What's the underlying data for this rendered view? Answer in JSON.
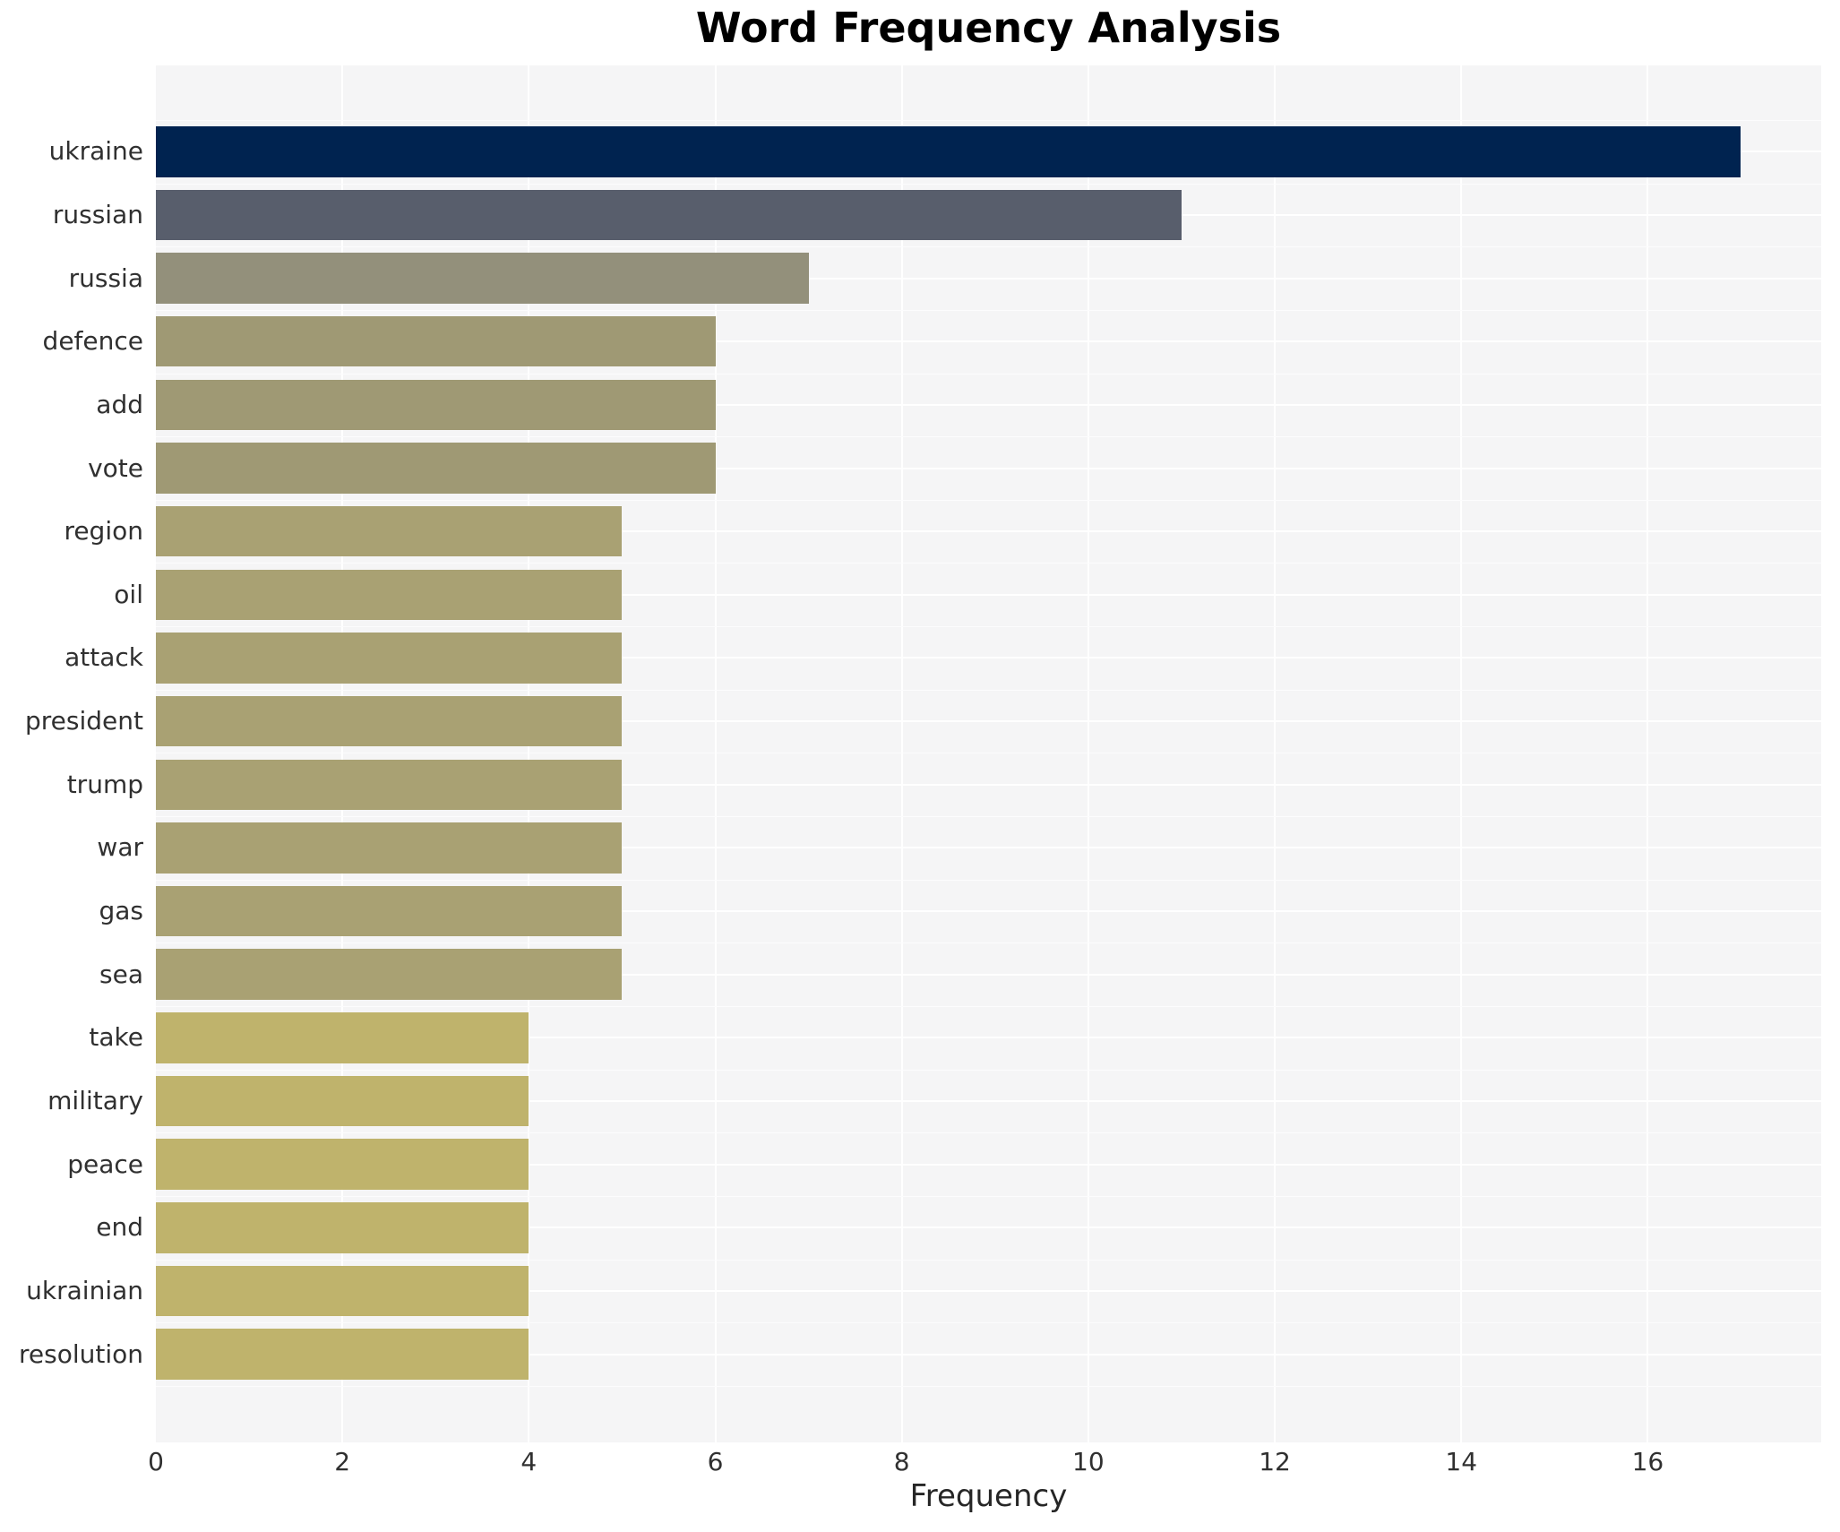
{
  "title": "Word Frequency Analysis",
  "chart_data": {
    "type": "bar",
    "orientation": "horizontal",
    "title": "Word Frequency Analysis",
    "xlabel": "Frequency",
    "ylabel": "",
    "categories": [
      "ukraine",
      "russian",
      "russia",
      "defence",
      "add",
      "vote",
      "region",
      "oil",
      "attack",
      "president",
      "trump",
      "war",
      "gas",
      "sea",
      "take",
      "military",
      "peace",
      "end",
      "ukrainian",
      "resolution"
    ],
    "values": [
      17,
      11,
      7,
      6,
      6,
      6,
      5,
      5,
      5,
      5,
      5,
      5,
      5,
      5,
      4,
      4,
      4,
      4,
      4,
      4
    ],
    "bar_colors": [
      "#002350",
      "#585e6c",
      "#93907b",
      "#9f9974",
      "#9f9974",
      "#9f9974",
      "#a9a173",
      "#a9a173",
      "#a9a173",
      "#a9a173",
      "#a9a173",
      "#a9a173",
      "#a9a173",
      "#a9a173",
      "#bfb36c",
      "#bfb36c",
      "#bfb36c",
      "#bfb36c",
      "#bfb36c",
      "#bfb36c"
    ],
    "x_ticks": [
      0,
      2,
      4,
      6,
      8,
      10,
      12,
      14,
      16
    ],
    "xlim": [
      0,
      17.86
    ],
    "grid": true,
    "legend": false,
    "plot_background": "#f5f5f6",
    "grid_color": "#ffffff",
    "tick_label_color": "#303030",
    "title_color": "#000000"
  }
}
